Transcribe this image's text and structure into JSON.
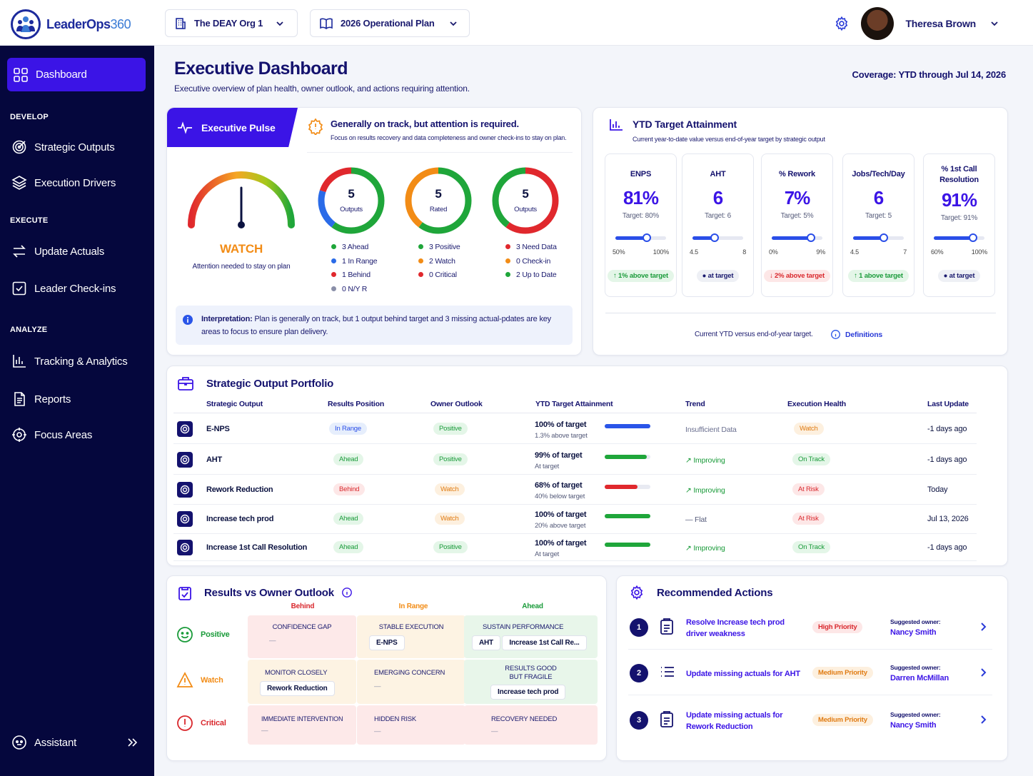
{
  "app": {
    "logo_main": "LeaderOps",
    "logo_num": "360",
    "org": "The DEAY Org 1",
    "plan": "2026 Operational Plan",
    "user": "Theresa Brown"
  },
  "sidebar": {
    "active": "Dashboard",
    "sec_develop": "DEVELOP",
    "strategic": "Strategic Outputs",
    "drivers": "Execution Drivers",
    "sec_execute": "EXECUTE",
    "actuals": "Update Actuals",
    "checkins": "Leader Check-ins",
    "sec_analyze": "ANALYZE",
    "tracking": "Tracking & Analytics",
    "reports": "Reports",
    "focus": "Focus Areas",
    "assistant": "Assistant"
  },
  "header": {
    "title": "Executive Dashboard",
    "subtitle": "Executive overview of plan health, owner outlook, and actions requiring attention.",
    "coverage": "Coverage: YTD through Jul 14, 2026"
  },
  "pulse": {
    "tab": "Executive Pulse",
    "headline": "Generally on track, but attention is required.",
    "detail": "Focus on results recovery and data completeness and owner check-ins to stay on plan.",
    "status": "WATCH",
    "status_note": "Attention needed to stay on plan",
    "gauge_level": 0.5,
    "donuts": [
      {
        "num": "5",
        "label": "Outputs",
        "segments": [
          {
            "v": 3,
            "c": "#1fa63a"
          },
          {
            "v": 1,
            "c": "#2a6be8"
          },
          {
            "v": 1,
            "c": "#e0282d"
          }
        ],
        "legend": [
          {
            "t": "3 Ahead",
            "c": "#1fa63a"
          },
          {
            "t": "1 In Range",
            "c": "#2a6be8"
          },
          {
            "t": "1 Behind",
            "c": "#e0282d"
          },
          {
            "t": "0 N/Y R",
            "c": "#8a8fa8"
          }
        ]
      },
      {
        "num": "5",
        "label": "Rated",
        "segments": [
          {
            "v": 3,
            "c": "#1fa63a"
          },
          {
            "v": 2,
            "c": "#f28c16"
          }
        ],
        "legend": [
          {
            "t": "3 Positive",
            "c": "#1fa63a"
          },
          {
            "t": "2 Watch",
            "c": "#f28c16"
          },
          {
            "t": "0 Critical",
            "c": "#e0282d"
          }
        ]
      },
      {
        "num": "5",
        "label": "Outputs",
        "segments": [
          {
            "v": 3,
            "c": "#e0282d"
          },
          {
            "v": 2,
            "c": "#1fa63a"
          }
        ],
        "legend": [
          {
            "t": "3 Need Data",
            "c": "#e0282d"
          },
          {
            "t": "0 Check-in",
            "c": "#f28c16"
          },
          {
            "t": "2 Up to Date",
            "c": "#1fa63a"
          }
        ]
      }
    ],
    "interp_label": "Interpretation:",
    "interp": " Plan is generally on track, but 1 output behind target and 3 missing actual-pdates are key areas to focus to ensure plan delivery."
  },
  "ytd": {
    "title": "YTD Target Attainment",
    "subtitle": "Current year-to-date value versus end-of-year target by strategic output",
    "footer": "Current YTD versus end-of-year target.",
    "definitions": "Definitions",
    "kpis": [
      {
        "name": "ENPS",
        "value": "81%",
        "target": "Target: 80%",
        "min": "50%",
        "max": "100%",
        "pos": 0.62,
        "status": "↑ 1% above target",
        "kind": "green"
      },
      {
        "name": "AHT",
        "value": "6",
        "target": "Target: 6",
        "min": "4.5",
        "max": "8",
        "pos": 0.43,
        "status": "● at target",
        "kind": "grey"
      },
      {
        "name": "% Rework",
        "value": "7%",
        "target": "Target: 5%",
        "min": "0%",
        "max": "9%",
        "pos": 0.78,
        "status": "↓ 2% above target",
        "kind": "red"
      },
      {
        "name": "Jobs/Tech/Day",
        "value": "6",
        "target": "Target: 5",
        "min": "4.5",
        "max": "7",
        "pos": 0.6,
        "status": "↑ 1 above target",
        "kind": "green"
      },
      {
        "name": "% 1st Call Resolution",
        "value": "91%",
        "target": "Target: 91%",
        "min": "60%",
        "max": "100%",
        "pos": 0.78,
        "status": "● at target",
        "kind": "grey"
      }
    ]
  },
  "portfolio": {
    "title": "Strategic Output Portfolio",
    "headers": [
      "Strategic Output",
      "Results Position",
      "Owner Outlook",
      "YTD Target Attainment",
      "Trend",
      "Execution Health",
      "Last Update"
    ],
    "rows": [
      {
        "name": "E-NPS",
        "pos": "In Range",
        "posk": "blue",
        "out": "Positive",
        "outk": "green",
        "att": "100% of target",
        "attsub": "1.3% above target",
        "fill": 1.0,
        "barc": "#2a55e8",
        "trend": "Insufficient Data",
        "health": "Watch",
        "hk": "orange",
        "upd": "-1 days ago"
      },
      {
        "name": "AHT",
        "pos": "Ahead",
        "posk": "green",
        "out": "Positive",
        "outk": "green",
        "att": "99% of target",
        "attsub": "At target",
        "fill": 0.92,
        "barc": "#1fa63a",
        "trend": "↗ Improving",
        "health": "On Track",
        "hk": "green",
        "upd": "-1 days ago"
      },
      {
        "name": "Rework Reduction",
        "pos": "Behind",
        "posk": "red",
        "out": "Watch",
        "outk": "orange",
        "att": "68% of target",
        "attsub": "40% below target",
        "fill": 0.72,
        "barc": "#e0282d",
        "trend": "↗ Improving",
        "health": "At Risk",
        "hk": "red",
        "upd": "Today"
      },
      {
        "name": "Increase tech prod",
        "pos": "Ahead",
        "posk": "green",
        "out": "Watch",
        "outk": "orange",
        "att": "100% of target",
        "attsub": "20% above target",
        "fill": 1.0,
        "barc": "#1fa63a",
        "trend": "— Flat",
        "health": "At Risk",
        "hk": "red",
        "upd": "Jul 13, 2026"
      },
      {
        "name": "Increase 1st Call Resolution",
        "pos": "Ahead",
        "posk": "green",
        "out": "Positive",
        "outk": "green",
        "att": "100% of target",
        "attsub": "At target",
        "fill": 1.0,
        "barc": "#1fa63a",
        "trend": "↗ Improving",
        "health": "On Track",
        "hk": "green",
        "upd": "-1 days ago"
      }
    ]
  },
  "matrix": {
    "title": "Results vs Owner Outlook",
    "cols": [
      "Behind",
      "In Range",
      "Ahead"
    ],
    "rows": [
      "Positive",
      "Watch",
      "Critical"
    ],
    "cells": [
      "CONFIDENCE GAP",
      "STABLE EXECUTION",
      "SUSTAIN PERFORMANCE",
      "MONITOR CLOSELY",
      "EMERGING CONCERN",
      "RESULTS GOOD BUT FRAGILE",
      "IMMEDIATE INTERVENTION",
      "HIDDEN RISK",
      "RECOVERY NEEDED"
    ],
    "chips": {
      "enps": "E-NPS",
      "aht": "AHT",
      "fcr": "Increase 1st Call Re...",
      "rework": "Rework Reduction",
      "tech": "Increase tech prod"
    },
    "dash": "—"
  },
  "actions": {
    "title": "Recommended Actions",
    "owner_label": "Suggested owner:",
    "items": [
      {
        "n": "1",
        "text": "Resolve Increase tech prod driver weakness",
        "prio": "High Priority",
        "pk": "red",
        "owner": "Nancy Smith"
      },
      {
        "n": "2",
        "text": "Update missing actuals for AHT",
        "prio": "Medium Priority",
        "pk": "orange",
        "owner": "Darren McMillan"
      },
      {
        "n": "3",
        "text": "Update missing actuals for Rework Reduction",
        "prio": "Medium Priority",
        "pk": "orange",
        "owner": "Nancy Smith"
      }
    ]
  }
}
